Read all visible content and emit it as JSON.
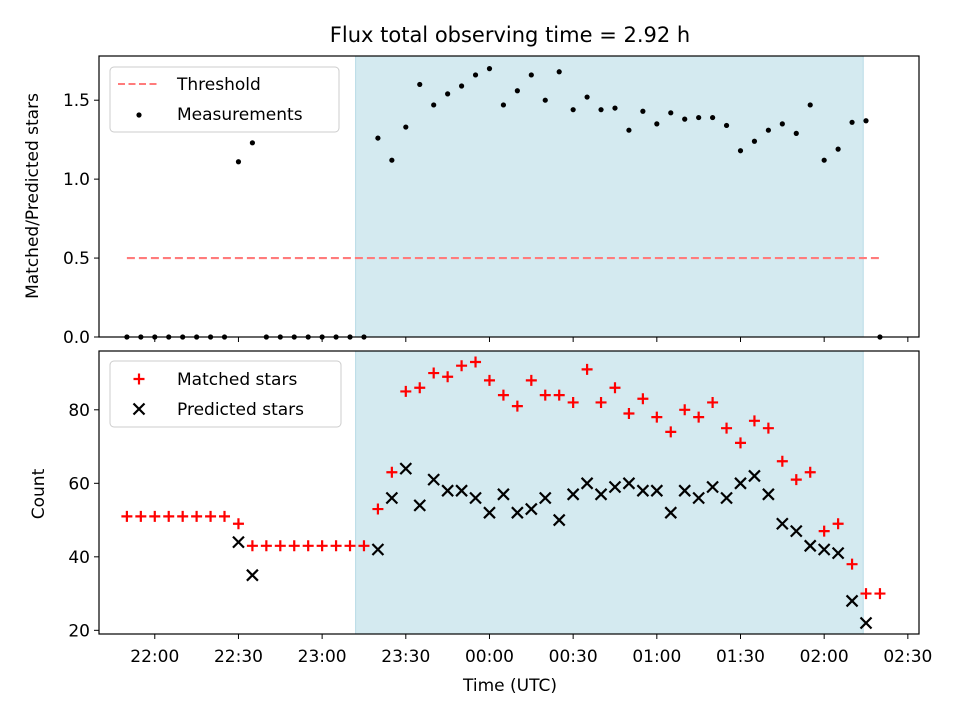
{
  "title": "Flux total observing time = 2.92 h",
  "colors": {
    "threshold": "#ff7b7b",
    "measurement": "#000000",
    "matched": "#ff0000",
    "predicted": "#000000",
    "band_fill": "#d4eaf0",
    "band_edge": "#b8dbe6"
  },
  "chart_data": [
    {
      "type": "scatter",
      "panel": "top",
      "title": "Flux total observing time = 2.92 h",
      "xlabel": "",
      "ylabel": "Matched/Predicted stars",
      "ylim": [
        0,
        1.78
      ],
      "yticks": [
        0.0,
        0.5,
        1.0,
        1.5
      ],
      "ytick_labels": [
        "0.0",
        "0.5",
        "1.0",
        "1.5"
      ],
      "legend": {
        "position": "top-left",
        "entries": [
          "Threshold",
          "Measurements"
        ]
      },
      "threshold": {
        "name": "Threshold",
        "value": 0.5,
        "x_start": "21:50",
        "x_end": "02:20",
        "style": "dashed"
      },
      "shaded_interval": [
        "23:12",
        "02:14"
      ],
      "series": [
        {
          "name": "Measurements",
          "x": [
            "21:50",
            "21:55",
            "22:00",
            "22:05",
            "22:10",
            "22:15",
            "22:20",
            "22:25",
            "22:30",
            "22:35",
            "22:40",
            "22:45",
            "22:50",
            "22:55",
            "23:00",
            "23:05",
            "23:10",
            "23:15",
            "23:20",
            "23:25",
            "23:30",
            "23:35",
            "23:40",
            "23:45",
            "23:50",
            "23:55",
            "00:00",
            "00:05",
            "00:10",
            "00:15",
            "00:20",
            "00:25",
            "00:30",
            "00:35",
            "00:40",
            "00:45",
            "00:50",
            "00:55",
            "01:00",
            "01:05",
            "01:10",
            "01:15",
            "01:20",
            "01:25",
            "01:30",
            "01:35",
            "01:40",
            "01:45",
            "01:50",
            "01:55",
            "02:00",
            "02:05",
            "02:10",
            "02:15",
            "02:20"
          ],
          "y": [
            0,
            0,
            0,
            0,
            0,
            0,
            0,
            0,
            1.11,
            1.23,
            0,
            0,
            0,
            0,
            0,
            0,
            0,
            0,
            1.26,
            1.12,
            1.33,
            1.6,
            1.47,
            1.54,
            1.59,
            1.66,
            1.7,
            1.47,
            1.56,
            1.66,
            1.5,
            1.68,
            1.44,
            1.52,
            1.44,
            1.45,
            1.31,
            1.43,
            1.35,
            1.42,
            1.38,
            1.39,
            1.39,
            1.34,
            1.18,
            1.24,
            1.31,
            1.35,
            1.29,
            1.47,
            1.12,
            1.19,
            1.36,
            1.37,
            0
          ]
        }
      ]
    },
    {
      "type": "scatter",
      "panel": "bottom",
      "xlabel": "Time (UTC)",
      "ylabel": "Count",
      "ylim": [
        19,
        96
      ],
      "yticks": [
        20,
        40,
        60,
        80
      ],
      "ytick_labels": [
        "20",
        "40",
        "60",
        "80"
      ],
      "xlim": [
        "21:40",
        "02:34"
      ],
      "xticks": [
        "22:00",
        "22:30",
        "23:00",
        "23:30",
        "00:00",
        "00:30",
        "01:00",
        "01:30",
        "02:00",
        "02:30"
      ],
      "legend": {
        "position": "top-left",
        "entries": [
          "Matched stars",
          "Predicted stars"
        ]
      },
      "shaded_interval": [
        "23:12",
        "02:14"
      ],
      "series": [
        {
          "name": "Matched stars",
          "marker": "plus",
          "x": [
            "21:50",
            "21:55",
            "22:00",
            "22:05",
            "22:10",
            "22:15",
            "22:20",
            "22:25",
            "22:30",
            "22:35",
            "22:40",
            "22:45",
            "22:50",
            "22:55",
            "23:00",
            "23:05",
            "23:10",
            "23:15",
            "23:20",
            "23:25",
            "23:30",
            "23:35",
            "23:40",
            "23:45",
            "23:50",
            "23:55",
            "00:00",
            "00:05",
            "00:10",
            "00:15",
            "00:20",
            "00:25",
            "00:30",
            "00:35",
            "00:40",
            "00:45",
            "00:50",
            "00:55",
            "01:00",
            "01:05",
            "01:10",
            "01:15",
            "01:20",
            "01:25",
            "01:30",
            "01:35",
            "01:40",
            "01:45",
            "01:50",
            "01:55",
            "02:00",
            "02:05",
            "02:10",
            "02:15",
            "02:20"
          ],
          "y": [
            51,
            51,
            51,
            51,
            51,
            51,
            51,
            51,
            49,
            43,
            43,
            43,
            43,
            43,
            43,
            43,
            43,
            43,
            53,
            63,
            85,
            86,
            90,
            89,
            92,
            93,
            88,
            84,
            81,
            88,
            84,
            84,
            82,
            91,
            82,
            86,
            79,
            83,
            78,
            74,
            80,
            78,
            82,
            75,
            71,
            77,
            75,
            66,
            61,
            63,
            47,
            49,
            38,
            30,
            30
          ]
        },
        {
          "name": "Predicted stars",
          "marker": "x",
          "x": [
            "22:30",
            "22:35",
            "23:20",
            "23:25",
            "23:30",
            "23:35",
            "23:40",
            "23:45",
            "23:50",
            "23:55",
            "00:00",
            "00:05",
            "00:10",
            "00:15",
            "00:20",
            "00:25",
            "00:30",
            "00:35",
            "00:40",
            "00:45",
            "00:50",
            "00:55",
            "01:00",
            "01:05",
            "01:10",
            "01:15",
            "01:20",
            "01:25",
            "01:30",
            "01:35",
            "01:40",
            "01:45",
            "01:50",
            "01:55",
            "02:00",
            "02:05",
            "02:10",
            "02:15"
          ],
          "y": [
            44,
            35,
            42,
            56,
            64,
            54,
            61,
            58,
            58,
            56,
            52,
            57,
            52,
            53,
            56,
            50,
            57,
            60,
            57,
            59,
            60,
            58,
            58,
            52,
            58,
            56,
            59,
            56,
            60,
            62,
            57,
            49,
            47,
            43,
            42,
            41,
            28,
            22
          ]
        }
      ]
    }
  ]
}
